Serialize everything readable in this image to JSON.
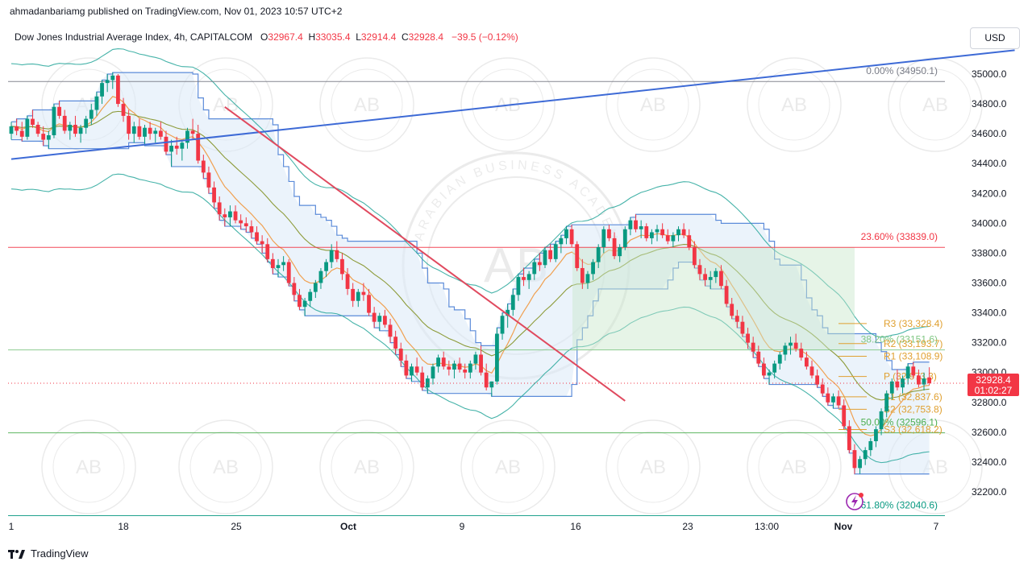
{
  "header": {
    "publisher": "ahmadanbariamg published on TradingView.com, Nov 01, 2023 10:57 UTC+2",
    "instrument": "Dow Jones Industrial Average Index, 4h, CAPITALCOM",
    "ohlc": {
      "o_label": "O",
      "o": "32967.4",
      "h_label": "H",
      "h": "33035.4",
      "l_label": "L",
      "l": "32914.4",
      "c_label": "C",
      "c": "32928.4",
      "change": "−39.5 (−0.12%)"
    }
  },
  "currency_button": "USD",
  "footer": {
    "brand": "TradingView",
    "logo_icon": "tradingview-logo-icon"
  },
  "watermark": {
    "text": "ARABIAN BUSINESS ACADEMY",
    "monogram": "AB"
  },
  "chart_data": {
    "type": "candlestick",
    "title": "Dow Jones Industrial Average Index, 4h, CAPITALCOM",
    "ylim": [
      32000,
      35200
    ],
    "y_ticks": [
      "35000.0",
      "34800.0",
      "34600.0",
      "34400.0",
      "34200.0",
      "34000.0",
      "33800.0",
      "33600.0",
      "33400.0",
      "33200.0",
      "33000.0",
      "32800.0",
      "32600.0",
      "32400.0",
      "32200.0"
    ],
    "x_ticks": [
      "1",
      "18",
      "25",
      "Oct",
      "9",
      "16",
      "23",
      "13:00",
      "Nov",
      "7"
    ],
    "last_price": {
      "value": 32928.4,
      "label": "32928.4",
      "countdown": "01:02:27",
      "color": "#f23645"
    },
    "fibonacci": [
      {
        "label": "0.00% (34950.1)",
        "value": 34950.1,
        "color": "#787b86"
      },
      {
        "label": "23.60% (33839.0)",
        "value": 33839.0,
        "color": "#f23645"
      },
      {
        "label": "38.20% (33151.6)",
        "value": 33151.6,
        "color": "#81c784"
      },
      {
        "label": "50.00% (32596.1)",
        "value": 32596.1,
        "color": "#4caf50"
      },
      {
        "label": "61.80% (32040.6)",
        "value": 32040.6,
        "color": "#089981"
      }
    ],
    "pivots": [
      {
        "label": "R3 (33,328.4)",
        "value": 33328.4
      },
      {
        "label": "R2 (33,193.7)",
        "value": 33193.7
      },
      {
        "label": "R1 (33,108.9)",
        "value": 33108.9
      },
      {
        "label": "P (32,973.3)",
        "value": 32973.3
      },
      {
        "label": "S1 (32,837.6)",
        "value": 32837.6
      },
      {
        "label": "S2 (32,753.8)",
        "value": 32753.8
      },
      {
        "label": "S3 (32,618.2)",
        "value": 32618.2
      }
    ],
    "colors": {
      "up": "#089981",
      "down": "#f23645",
      "trendline_up": "#3d6ad6",
      "trendline_down": "#e04a5f",
      "channel": "#5b8bd9",
      "pivot": "#e0a030"
    },
    "trendlines": [
      {
        "name": "rising",
        "from": [
          0,
          34430
        ],
        "to": [
          188,
          35160
        ]
      },
      {
        "name": "falling",
        "from": [
          40,
          34780
        ],
        "to": [
          115,
          32810
        ]
      }
    ],
    "candles": [
      [
        34600,
        34680,
        34560,
        34650
      ],
      [
        34650,
        34700,
        34590,
        34620
      ],
      [
        34620,
        34680,
        34550,
        34580
      ],
      [
        34580,
        34720,
        34560,
        34700
      ],
      [
        34700,
        34760,
        34640,
        34660
      ],
      [
        34660,
        34680,
        34580,
        34600
      ],
      [
        34600,
        34650,
        34520,
        34560
      ],
      [
        34560,
        34620,
        34500,
        34590
      ],
      [
        34590,
        34800,
        34570,
        34780
      ],
      [
        34780,
        34820,
        34700,
        34720
      ],
      [
        34720,
        34760,
        34600,
        34620
      ],
      [
        34620,
        34680,
        34560,
        34660
      ],
      [
        34660,
        34720,
        34580,
        34600
      ],
      [
        34600,
        34660,
        34540,
        34640
      ],
      [
        34640,
        34720,
        34600,
        34700
      ],
      [
        34700,
        34800,
        34660,
        34760
      ],
      [
        34760,
        34880,
        34720,
        34850
      ],
      [
        34850,
        34960,
        34800,
        34940
      ],
      [
        34940,
        35000,
        34880,
        34960
      ],
      [
        34960,
        35010,
        34900,
        34990
      ],
      [
        34990,
        35000,
        34780,
        34800
      ],
      [
        34800,
        34840,
        34680,
        34720
      ],
      [
        34720,
        34760,
        34560,
        34600
      ],
      [
        34600,
        34680,
        34540,
        34650
      ],
      [
        34650,
        34700,
        34560,
        34580
      ],
      [
        34580,
        34660,
        34520,
        34640
      ],
      [
        34640,
        34680,
        34560,
        34600
      ],
      [
        34600,
        34640,
        34540,
        34620
      ],
      [
        34620,
        34680,
        34560,
        34580
      ],
      [
        34580,
        34620,
        34460,
        34480
      ],
      [
        34480,
        34560,
        34380,
        34520
      ],
      [
        34520,
        34580,
        34460,
        34500
      ],
      [
        34500,
        34560,
        34420,
        34540
      ],
      [
        34540,
        34640,
        34500,
        34620
      ],
      [
        34620,
        34700,
        34560,
        34600
      ],
      [
        34600,
        34660,
        34400,
        34420
      ],
      [
        34420,
        34460,
        34300,
        34340
      ],
      [
        34340,
        34380,
        34200,
        34240
      ],
      [
        34240,
        34280,
        34100,
        34140
      ],
      [
        34140,
        34180,
        34020,
        34060
      ],
      [
        34060,
        34100,
        33980,
        34040
      ],
      [
        34040,
        34120,
        33980,
        34080
      ],
      [
        34080,
        34120,
        34000,
        34020
      ],
      [
        34020,
        34060,
        33960,
        34000
      ],
      [
        34000,
        34040,
        33940,
        33980
      ],
      [
        33980,
        34020,
        33900,
        33940
      ],
      [
        33940,
        33980,
        33860,
        33880
      ],
      [
        33880,
        33920,
        33800,
        33860
      ],
      [
        33860,
        33900,
        33740,
        33760
      ],
      [
        33760,
        33800,
        33660,
        33700
      ],
      [
        33700,
        33760,
        33640,
        33720
      ],
      [
        33720,
        33780,
        33680,
        33740
      ],
      [
        33740,
        33760,
        33580,
        33600
      ],
      [
        33600,
        33640,
        33480,
        33520
      ],
      [
        33520,
        33560,
        33420,
        33440
      ],
      [
        33440,
        33500,
        33380,
        33480
      ],
      [
        33480,
        33560,
        33440,
        33540
      ],
      [
        33540,
        33620,
        33500,
        33600
      ],
      [
        33600,
        33700,
        33560,
        33680
      ],
      [
        33680,
        33760,
        33640,
        33740
      ],
      [
        33740,
        33860,
        33700,
        33820
      ],
      [
        33820,
        33880,
        33740,
        33760
      ],
      [
        33760,
        33800,
        33620,
        33660
      ],
      [
        33660,
        33700,
        33520,
        33560
      ],
      [
        33560,
        33600,
        33440,
        33480
      ],
      [
        33480,
        33560,
        33440,
        33540
      ],
      [
        33540,
        33600,
        33480,
        33520
      ],
      [
        33520,
        33560,
        33380,
        33400
      ],
      [
        33400,
        33440,
        33300,
        33340
      ],
      [
        33340,
        33400,
        33280,
        33380
      ],
      [
        33380,
        33420,
        33300,
        33320
      ],
      [
        33320,
        33360,
        33200,
        33240
      ],
      [
        33240,
        33280,
        33120,
        33160
      ],
      [
        33160,
        33200,
        33040,
        33080
      ],
      [
        33080,
        33120,
        32960,
        32980
      ],
      [
        32980,
        33060,
        32940,
        33040
      ],
      [
        33040,
        33100,
        32980,
        33000
      ],
      [
        33000,
        33040,
        32880,
        32900
      ],
      [
        32900,
        32980,
        32860,
        32960
      ],
      [
        32960,
        33060,
        32920,
        33040
      ],
      [
        33040,
        33120,
        33000,
        33100
      ],
      [
        33100,
        33140,
        33020,
        33040
      ],
      [
        33040,
        33080,
        32980,
        33020
      ],
      [
        33020,
        33080,
        32960,
        33060
      ],
      [
        33060,
        33100,
        33000,
        33020
      ],
      [
        33020,
        33060,
        32960,
        33000
      ],
      [
        33000,
        33080,
        32960,
        33060
      ],
      [
        33060,
        33140,
        33020,
        33120
      ],
      [
        33120,
        33180,
        32980,
        33000
      ],
      [
        33000,
        33060,
        32880,
        32900
      ],
      [
        32900,
        32940,
        32840,
        32940
      ],
      [
        32940,
        33300,
        32920,
        33260
      ],
      [
        33260,
        33400,
        33220,
        33380
      ],
      [
        33380,
        33460,
        33300,
        33420
      ],
      [
        33420,
        33560,
        33380,
        33520
      ],
      [
        33520,
        33660,
        33480,
        33640
      ],
      [
        33640,
        33700,
        33580,
        33620
      ],
      [
        33620,
        33680,
        33560,
        33660
      ],
      [
        33660,
        33760,
        33620,
        33740
      ],
      [
        33740,
        33800,
        33680,
        33720
      ],
      [
        33720,
        33840,
        33700,
        33820
      ],
      [
        33820,
        33860,
        33740,
        33760
      ],
      [
        33760,
        33880,
        33740,
        33860
      ],
      [
        33860,
        33920,
        33800,
        33900
      ],
      [
        33900,
        33980,
        33860,
        33960
      ],
      [
        33960,
        33990,
        33840,
        33860
      ],
      [
        33860,
        33880,
        33680,
        33700
      ],
      [
        33700,
        33760,
        33560,
        33600
      ],
      [
        33600,
        33680,
        33560,
        33660
      ],
      [
        33660,
        33760,
        33620,
        33740
      ],
      [
        33740,
        33860,
        33700,
        33840
      ],
      [
        33840,
        33980,
        33800,
        33960
      ],
      [
        33960,
        33990,
        33880,
        33900
      ],
      [
        33900,
        33940,
        33760,
        33780
      ],
      [
        33780,
        33860,
        33740,
        33840
      ],
      [
        33840,
        33980,
        33820,
        33960
      ],
      [
        33960,
        34040,
        33920,
        34020
      ],
      [
        34020,
        34060,
        33940,
        33960
      ],
      [
        33960,
        34020,
        33900,
        33980
      ],
      [
        33980,
        34000,
        33880,
        33900
      ],
      [
        33900,
        33960,
        33860,
        33940
      ],
      [
        33940,
        33990,
        33880,
        33960
      ],
      [
        33960,
        34000,
        33900,
        33920
      ],
      [
        33920,
        33960,
        33860,
        33880
      ],
      [
        33880,
        33940,
        33840,
        33920
      ],
      [
        33920,
        33980,
        33880,
        33960
      ],
      [
        33960,
        34000,
        33900,
        33920
      ],
      [
        33920,
        33960,
        33820,
        33840
      ],
      [
        33840,
        33880,
        33700,
        33720
      ],
      [
        33720,
        33760,
        33620,
        33660
      ],
      [
        33660,
        33700,
        33580,
        33620
      ],
      [
        33620,
        33680,
        33560,
        33640
      ],
      [
        33640,
        33700,
        33600,
        33680
      ],
      [
        33680,
        33720,
        33560,
        33580
      ],
      [
        33580,
        33620,
        33440,
        33460
      ],
      [
        33460,
        33500,
        33360,
        33380
      ],
      [
        33380,
        33420,
        33300,
        33340
      ],
      [
        33340,
        33380,
        33240,
        33260
      ],
      [
        33260,
        33300,
        33160,
        33200
      ],
      [
        33200,
        33240,
        33100,
        33140
      ],
      [
        33140,
        33180,
        33040,
        33060
      ],
      [
        33060,
        33100,
        32960,
        32980
      ],
      [
        32980,
        33020,
        32920,
        33000
      ],
      [
        33000,
        33080,
        32960,
        33060
      ],
      [
        33060,
        33140,
        33020,
        33120
      ],
      [
        33120,
        33200,
        33080,
        33180
      ],
      [
        33180,
        33240,
        33120,
        33200
      ],
      [
        33200,
        33260,
        33140,
        33160
      ],
      [
        33160,
        33200,
        33080,
        33100
      ],
      [
        33100,
        33140,
        33020,
        33040
      ],
      [
        33040,
        33080,
        32960,
        32980
      ],
      [
        32980,
        33020,
        32900,
        32920
      ],
      [
        32920,
        32960,
        32840,
        32860
      ],
      [
        32860,
        32900,
        32780,
        32800
      ],
      [
        32800,
        32860,
        32760,
        32840
      ],
      [
        32840,
        32880,
        32760,
        32780
      ],
      [
        32780,
        32820,
        32620,
        32640
      ],
      [
        32640,
        32680,
        32460,
        32480
      ],
      [
        32480,
        32520,
        32320,
        32360
      ],
      [
        32360,
        32440,
        32320,
        32420
      ],
      [
        32420,
        32500,
        32380,
        32480
      ],
      [
        32480,
        32560,
        32440,
        32540
      ],
      [
        32540,
        32640,
        32500,
        32620
      ],
      [
        32620,
        32760,
        32580,
        32740
      ],
      [
        32740,
        32880,
        32700,
        32860
      ],
      [
        32860,
        32960,
        32820,
        32940
      ],
      [
        32940,
        33020,
        32880,
        32900
      ],
      [
        32900,
        32980,
        32860,
        32960
      ],
      [
        32960,
        33060,
        32920,
        33040
      ],
      [
        33040,
        33070,
        32960,
        32980
      ],
      [
        32980,
        33020,
        32900,
        32920
      ],
      [
        32920,
        33000,
        32880,
        32960
      ],
      [
        32967.4,
        33035.4,
        32914.4,
        32928.4
      ]
    ]
  }
}
